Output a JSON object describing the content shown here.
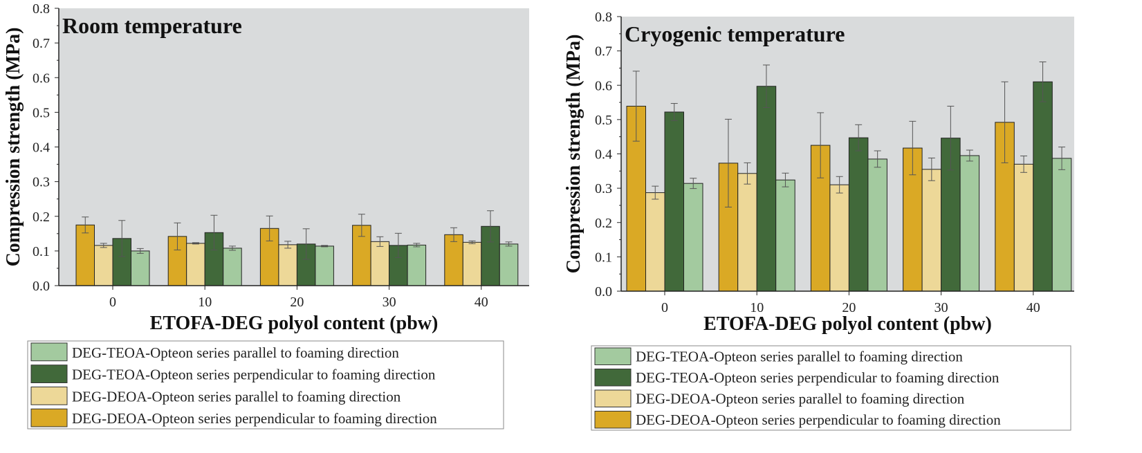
{
  "colors": {
    "DEOA_perp": "#DAA925",
    "DEOA_par": "#EDD898",
    "TEOA_perp": "#41693A",
    "TEOA_par": "#A3CA9F",
    "plot_bg": "#D9DBDC"
  },
  "chart_data": [
    {
      "type": "bar",
      "title": "Room temperature",
      "xlabel": "ETOFA-DEG polyol content (pbw)",
      "ylabel": "Compression strength (MPa)",
      "ylim": [
        0,
        0.8
      ],
      "yticks": [
        "0.0",
        "0.1",
        "0.2",
        "0.3",
        "0.4",
        "0.5",
        "0.6",
        "0.7",
        "0.8"
      ],
      "categories": [
        "0",
        "10",
        "20",
        "30",
        "40"
      ],
      "grid": false,
      "legend_placement": "below",
      "legend": [
        "DEG-TEOA-Opteon series parallel to foaming direction",
        "DEG-TEOA-Opteon series perpendicular to foaming direction",
        "DEG-DEOA-Opteon series parallel to foaming direction",
        "DEG-DEOA-Opteon series perpendicular to foaming direction"
      ],
      "series": [
        {
          "name": "DEG-DEOA-Opteon series perpendicular to foaming direction",
          "color_key": "DEOA_perp",
          "values": [
            0.175,
            0.142,
            0.165,
            0.174,
            0.147
          ],
          "errors": [
            0.023,
            0.039,
            0.036,
            0.032,
            0.02
          ]
        },
        {
          "name": "DEG-DEOA-Opteon series parallel to foaming direction",
          "color_key": "DEOA_par",
          "values": [
            0.116,
            0.122,
            0.118,
            0.127,
            0.125
          ],
          "errors": [
            0.006,
            0.002,
            0.01,
            0.014,
            0.004
          ]
        },
        {
          "name": "DEG-TEOA-Opteon series perpendicular to foaming direction",
          "color_key": "TEOA_perp",
          "values": [
            0.136,
            0.153,
            0.12,
            0.116,
            0.171
          ],
          "errors": [
            0.052,
            0.05,
            0.044,
            0.035,
            0.045
          ]
        },
        {
          "name": "DEG-TEOA-Opteon series parallel to foaming direction",
          "color_key": "TEOA_par",
          "values": [
            0.1,
            0.108,
            0.114,
            0.117,
            0.12
          ],
          "errors": [
            0.007,
            0.006,
            0.002,
            0.005,
            0.006
          ]
        }
      ]
    },
    {
      "type": "bar",
      "title": "Cryogenic temperature",
      "xlabel": "ETOFA-DEG polyol content (pbw)",
      "ylabel": "Compression strength (MPa)",
      "ylim": [
        0,
        0.8
      ],
      "yticks": [
        "0.0",
        "0.1",
        "0.2",
        "0.3",
        "0.4",
        "0.5",
        "0.6",
        "0.7",
        "0.8"
      ],
      "categories": [
        "0",
        "10",
        "20",
        "30",
        "40"
      ],
      "grid": false,
      "legend_placement": "below",
      "legend": [
        "DEG-TEOA-Opteon series parallel to foaming direction",
        "DEG-TEOA-Opteon series perpendicular to foaming direction",
        "DEG-DEOA-Opteon series parallel to foaming direction",
        "DEG-DEOA-Opteon series perpendicular to foaming direction"
      ],
      "series": [
        {
          "name": "DEG-DEOA-Opteon series perpendicular to foaming direction",
          "color_key": "DEOA_perp",
          "values": [
            0.539,
            0.373,
            0.425,
            0.417,
            0.492
          ],
          "errors": [
            0.102,
            0.128,
            0.095,
            0.078,
            0.118
          ]
        },
        {
          "name": "DEG-DEOA-Opteon series parallel to foaming direction",
          "color_key": "DEOA_par",
          "values": [
            0.287,
            0.343,
            0.31,
            0.355,
            0.37
          ],
          "errors": [
            0.019,
            0.031,
            0.024,
            0.033,
            0.024
          ]
        },
        {
          "name": "DEG-TEOA-Opteon series perpendicular to foaming direction",
          "color_key": "TEOA_perp",
          "values": [
            0.522,
            0.597,
            0.447,
            0.446,
            0.61
          ],
          "errors": [
            0.025,
            0.062,
            0.038,
            0.093,
            0.058
          ]
        },
        {
          "name": "DEG-TEOA-Opteon series parallel to foaming direction",
          "color_key": "TEOA_par",
          "values": [
            0.314,
            0.324,
            0.385,
            0.395,
            0.387
          ],
          "errors": [
            0.015,
            0.02,
            0.024,
            0.016,
            0.033
          ]
        }
      ]
    }
  ]
}
